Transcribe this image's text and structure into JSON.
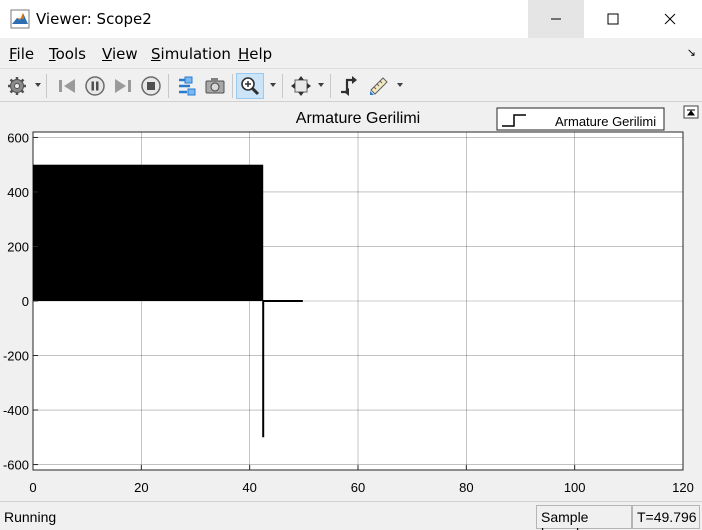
{
  "window": {
    "title": "Viewer: Scope2"
  },
  "menu": [
    {
      "label": "File",
      "accel": "F",
      "rest": "ile"
    },
    {
      "label": "Tools",
      "accel": "T",
      "rest": "ools"
    },
    {
      "label": "View",
      "accel": "V",
      "rest": "iew"
    },
    {
      "label": "Simulation",
      "accel": "S",
      "rest": "imulation"
    },
    {
      "label": "Help",
      "accel": "H",
      "rest": "elp"
    }
  ],
  "toolbar": {
    "icons": [
      "settings-icon",
      "step-back-icon",
      "pause-icon",
      "step-forward-icon",
      "stop-icon",
      "highlight-simulink-block-icon",
      "snapshot-icon",
      "zoom-in-icon",
      "zoom-fit-icon",
      "triggers-icon",
      "measurements-icon"
    ]
  },
  "status": {
    "state": "Running",
    "mode": "Sample based",
    "time": "T=49.796"
  },
  "chart_data": {
    "type": "line",
    "title": "Armature Gerilimi",
    "xlabel": "",
    "ylabel": "",
    "xlim": [
      0,
      120
    ],
    "ylim": [
      -620,
      620
    ],
    "xticks": [
      0,
      20,
      40,
      60,
      80,
      100,
      120
    ],
    "yticks": [
      -600,
      -400,
      -200,
      0,
      200,
      400,
      600
    ],
    "grid": true,
    "legend": {
      "position": "top-right",
      "entries": [
        "Armature Gerilimi"
      ]
    },
    "series": [
      {
        "name": "Armature Gerilimi",
        "color": "#000000",
        "pwm_band": {
          "x_start": 0,
          "x_end": 42.5,
          "low": 0,
          "high": 500
        },
        "points": [
          [
            42.5,
            0
          ],
          [
            42.5,
            -500
          ],
          [
            42.5,
            0
          ],
          [
            49.8,
            0
          ]
        ]
      }
    ]
  }
}
